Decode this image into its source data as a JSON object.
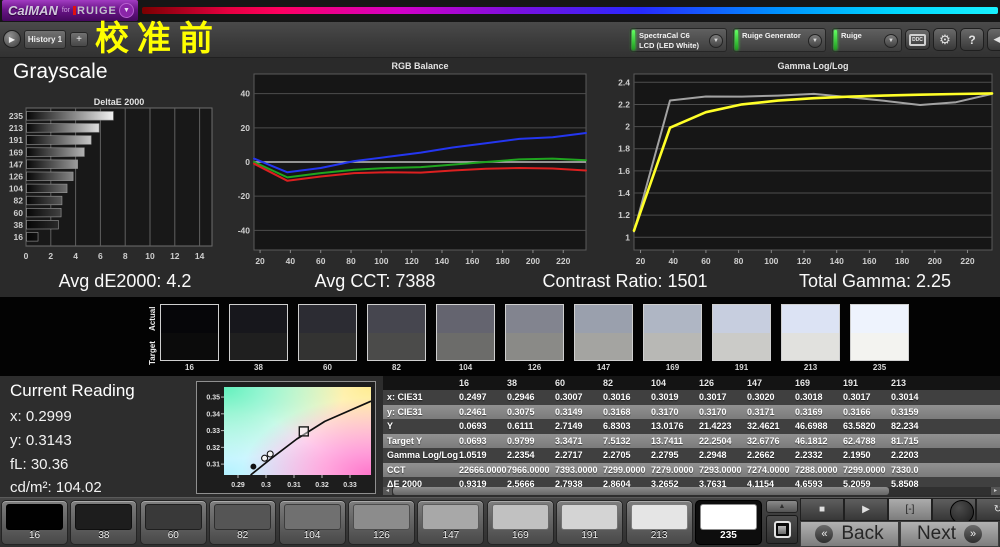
{
  "icons": {
    "dropdown": "▼",
    "play": "▶",
    "plus": "+",
    "gear": "⚙",
    "help": "?",
    "collapse": "◀",
    "up": "▲",
    "stop": "■",
    "pattern": "[-]",
    "loop": "∞",
    "refresh": "↻",
    "back_chev": "«",
    "next_chev": "»",
    "left": "◂",
    "right": "▸"
  },
  "header": {
    "logo_calman": "CalMAN",
    "logo_for": "for",
    "logo_brand": "RUIGE",
    "history_tab": "History 1",
    "page_title": "校准前",
    "meter_line1": "SpectraCal C6",
    "meter_line2": "LCD (LED White)",
    "generator_label": "Ruige Generator",
    "display_label": "Ruige",
    "ddc_label": "DDC"
  },
  "grayscale_title": "Grayscale",
  "stats": [
    {
      "text": "Avg dE2000: 4.2"
    },
    {
      "text": "Avg CCT: 7388"
    },
    {
      "text": "Contrast Ratio: 1501"
    },
    {
      "text": "Total Gamma: 2.25"
    }
  ],
  "chart_data": [
    {
      "type": "bar",
      "orientation": "horizontal",
      "title": "DeltaE 2000",
      "categories": [
        "235",
        "213",
        "191",
        "169",
        "147",
        "126",
        "104",
        "82",
        "60",
        "38",
        "16"
      ],
      "values": [
        7.0,
        5.85,
        5.21,
        4.66,
        4.12,
        3.76,
        3.27,
        2.86,
        2.79,
        2.57,
        0.93
      ],
      "bar_colors": [
        "#f2f2f2",
        "#dedede",
        "#c8c8c8",
        "#b2b2b2",
        "#9c9c9c",
        "#868686",
        "#6f6f6f",
        "#585858",
        "#424242",
        "#2a2a2a",
        "#101010"
      ],
      "xlim": [
        0,
        15
      ],
      "xticks": [
        "0",
        "2",
        "4",
        "6",
        "8",
        "10",
        "12",
        "14"
      ],
      "grid": true
    },
    {
      "type": "line",
      "title": "RGB Balance",
      "x": [
        16,
        38,
        60,
        82,
        104,
        126,
        147,
        169,
        191,
        213,
        235
      ],
      "ylim": [
        -51.5,
        51.5
      ],
      "yticks": [
        "40",
        "20",
        "0",
        "-20",
        "-40"
      ],
      "xticks": [
        "20",
        "40",
        "60",
        "80",
        "100",
        "120",
        "140",
        "160",
        "180",
        "200",
        "220"
      ],
      "series": [
        {
          "name": "Blue",
          "color": "#2436f0",
          "values": [
            2,
            -6,
            -3.5,
            0.5,
            3,
            5.5,
            8.5,
            11,
            13.5,
            14.5,
            17
          ]
        },
        {
          "name": "Green",
          "color": "#1fa51f",
          "values": [
            0,
            -9,
            -6.5,
            -4.5,
            -3.5,
            -3,
            -1.5,
            0,
            1.5,
            2,
            1
          ]
        },
        {
          "name": "Red",
          "color": "#dd2020",
          "values": [
            -1,
            -11,
            -8.5,
            -6.5,
            -6,
            -6.2,
            -5,
            -4,
            -3.5,
            -3.8,
            -5
          ]
        }
      ]
    },
    {
      "type": "line",
      "title": "Gamma Log/Log",
      "x": [
        16,
        38,
        60,
        82,
        104,
        126,
        147,
        169,
        191,
        213,
        235
      ],
      "ylim": [
        0.885,
        2.475
      ],
      "yticks": [
        "2.4",
        "2.2",
        "2",
        "1.8",
        "1.6",
        "1.4",
        "1.2",
        "1"
      ],
      "xticks": [
        "20",
        "40",
        "60",
        "80",
        "100",
        "120",
        "140",
        "160",
        "180",
        "200",
        "220"
      ],
      "series": [
        {
          "name": "Measured",
          "color": "#a2a2a2",
          "values": [
            1.0519,
            2.2354,
            2.2717,
            2.2705,
            2.2795,
            2.2948,
            2.2662,
            2.2332,
            2.195,
            2.2203,
            2.295
          ]
        },
        {
          "name": "Target",
          "color": "#ffff28",
          "width": 2.6,
          "values": [
            1.06,
            1.99,
            2.13,
            2.2,
            2.235,
            2.256,
            2.27,
            2.28,
            2.288,
            2.294,
            2.3
          ]
        }
      ]
    }
  ],
  "swatch_strip": {
    "actual_label": "Actual",
    "target_label": "Target",
    "items": [
      {
        "level": "16",
        "actual": "#060609",
        "target": "#0b0b0b"
      },
      {
        "level": "38",
        "actual": "#17171c",
        "target": "#1f1f1f"
      },
      {
        "level": "60",
        "actual": "#2c2c33",
        "target": "#333332"
      },
      {
        "level": "82",
        "actual": "#46464f",
        "target": "#4b4b4a"
      },
      {
        "level": "104",
        "actual": "#64646f",
        "target": "#6c6c6a"
      },
      {
        "level": "126",
        "actual": "#82848f",
        "target": "#8a8a87"
      },
      {
        "level": "147",
        "actual": "#9aa0ad",
        "target": "#a4a4a1"
      },
      {
        "level": "169",
        "actual": "#afb6c4",
        "target": "#b8b8b5"
      },
      {
        "level": "191",
        "actual": "#c7cedf",
        "target": "#cbcbc8"
      },
      {
        "level": "213",
        "actual": "#dce3f4",
        "target": "#e1e1de"
      },
      {
        "level": "235",
        "actual": "#eef3fd",
        "target": "#f3f3f0"
      }
    ]
  },
  "current_reading": {
    "title": "Current Reading",
    "lines": [
      "x: 0.2999",
      "y: 0.3143",
      "fL: 30.36",
      "cd/m²: 104.02"
    ]
  },
  "cie_chart": {
    "xticks": [
      "0.29",
      "0.3",
      "0.31",
      "0.32",
      "0.33"
    ],
    "yticks": [
      "0.35",
      "0.34",
      "0.33",
      "0.32",
      "0.31"
    ],
    "xlim": [
      0.285,
      0.3375
    ],
    "ylim": [
      0.3035,
      0.356
    ],
    "locus": [
      [
        0.2945,
        0.3035
      ],
      [
        0.302,
        0.3135
      ],
      [
        0.311,
        0.325
      ],
      [
        0.321,
        0.3355
      ],
      [
        0.3375,
        0.3475
      ]
    ],
    "target_square": [
      0.3135,
      0.3295
    ],
    "points": [
      {
        "x": 0.2955,
        "y": 0.3085,
        "style": "filled"
      },
      {
        "x": 0.2995,
        "y": 0.3135,
        "style": "open"
      },
      {
        "x": 0.3015,
        "y": 0.316,
        "style": "open"
      }
    ]
  },
  "table": {
    "columns": [
      "16",
      "38",
      "60",
      "82",
      "104",
      "126",
      "147",
      "169",
      "191",
      "213"
    ],
    "rows": [
      {
        "label": "x: CIE31",
        "values": [
          "0.2497",
          "0.2946",
          "0.3007",
          "0.3016",
          "0.3019",
          "0.3017",
          "0.3020",
          "0.3018",
          "0.3017",
          "0.3014"
        ]
      },
      {
        "label": "y: CIE31",
        "values": [
          "0.2461",
          "0.3075",
          "0.3149",
          "0.3168",
          "0.3170",
          "0.3170",
          "0.3171",
          "0.3169",
          "0.3166",
          "0.3159"
        ]
      },
      {
        "label": "Y",
        "values": [
          "0.0693",
          "0.6111",
          "2.7149",
          "6.8303",
          "13.0176",
          "21.4223",
          "32.4621",
          "46.6988",
          "63.5820",
          "82.234"
        ]
      },
      {
        "label": "Target Y",
        "values": [
          "0.0693",
          "0.9799",
          "3.3471",
          "7.5132",
          "13.7411",
          "22.2504",
          "32.6776",
          "46.1812",
          "62.4788",
          "81.715"
        ]
      },
      {
        "label": "Gamma Log/Log",
        "values": [
          "1.0519",
          "2.2354",
          "2.2717",
          "2.2705",
          "2.2795",
          "2.2948",
          "2.2662",
          "2.2332",
          "2.1950",
          "2.2203"
        ]
      },
      {
        "label": "CCT",
        "values": [
          "22666.0000",
          "7966.0000",
          "7393.0000",
          "7299.0000",
          "7279.0000",
          "7293.0000",
          "7274.0000",
          "7288.0000",
          "7299.0000",
          "7330.0"
        ]
      },
      {
        "label": "ΔE 2000",
        "values": [
          "0.9319",
          "2.5666",
          "2.7938",
          "2.8604",
          "3.2652",
          "3.7631",
          "4.1154",
          "4.6593",
          "5.2059",
          "5.8508"
        ]
      }
    ]
  },
  "bottom_bar": {
    "patterns": [
      {
        "level": "16",
        "color": "#010101",
        "selected": false
      },
      {
        "level": "38",
        "color": "#1d1d1d",
        "selected": false
      },
      {
        "level": "60",
        "color": "#393939",
        "selected": false
      },
      {
        "level": "82",
        "color": "#555555",
        "selected": false
      },
      {
        "level": "104",
        "color": "#707070",
        "selected": false
      },
      {
        "level": "126",
        "color": "#8c8c8c",
        "selected": false
      },
      {
        "level": "147",
        "color": "#a8a8a8",
        "selected": false
      },
      {
        "level": "169",
        "color": "#c1c1c1",
        "selected": false
      },
      {
        "level": "191",
        "color": "#d4d4d4",
        "selected": false
      },
      {
        "level": "213",
        "color": "#e5e5e5",
        "selected": false
      },
      {
        "level": "235",
        "color": "#ffffff",
        "selected": true
      }
    ],
    "back_label": "Back",
    "next_label": "Next"
  }
}
